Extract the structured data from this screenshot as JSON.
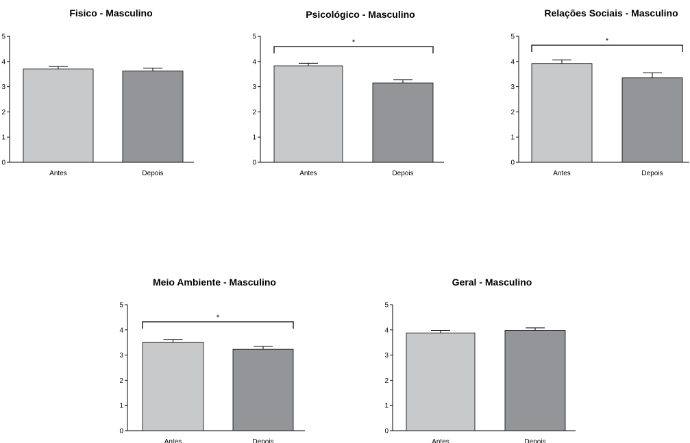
{
  "chart_data": [
    {
      "type": "bar",
      "title": "Fisico - Masculino",
      "categories": [
        "Antes",
        "Depois"
      ],
      "values": [
        3.7,
        3.62
      ],
      "errors": [
        0.1,
        0.12
      ],
      "ylim": [
        0,
        5
      ],
      "yticks": [
        "0",
        "1",
        "2",
        "3",
        "4",
        "5"
      ],
      "significance": "",
      "colors": [
        "#c8c9cb",
        "#939598"
      ]
    },
    {
      "type": "bar",
      "title": "Psicológico - Masculino",
      "categories": [
        "Antes",
        "Depois"
      ],
      "values": [
        3.83,
        3.15
      ],
      "errors": [
        0.1,
        0.12
      ],
      "ylim": [
        0,
        5
      ],
      "yticks": [
        "0",
        "1",
        "2",
        "3",
        "4",
        "5"
      ],
      "significance": "*",
      "colors": [
        "#c8c9cb",
        "#939598"
      ]
    },
    {
      "type": "bar",
      "title": "Relações Sociais - Masculino",
      "categories": [
        "Antes",
        "Depois"
      ],
      "values": [
        3.92,
        3.35
      ],
      "errors": [
        0.14,
        0.2
      ],
      "ylim": [
        0,
        5
      ],
      "yticks": [
        "0",
        "1",
        "2",
        "3",
        "4",
        "5"
      ],
      "significance": "*",
      "colors": [
        "#c8c9cb",
        "#939598"
      ]
    },
    {
      "type": "bar",
      "title": "Meio Ambiente - Masculino",
      "categories": [
        "Antes",
        "Depois"
      ],
      "values": [
        3.5,
        3.23
      ],
      "errors": [
        0.12,
        0.12
      ],
      "ylim": [
        0,
        5
      ],
      "yticks": [
        "0",
        "1",
        "2",
        "3",
        "4",
        "5"
      ],
      "significance": "*",
      "colors": [
        "#c8c9cb",
        "#939598"
      ]
    },
    {
      "type": "bar",
      "title": "Geral - Masculino",
      "categories": [
        "Antes",
        "Depois"
      ],
      "values": [
        3.88,
        3.98
      ],
      "errors": [
        0.1,
        0.1
      ],
      "ylim": [
        0,
        5
      ],
      "yticks": [
        "0",
        "1",
        "2",
        "3",
        "4",
        "5"
      ],
      "significance": "",
      "colors": [
        "#c8c9cb",
        "#939598"
      ]
    }
  ]
}
